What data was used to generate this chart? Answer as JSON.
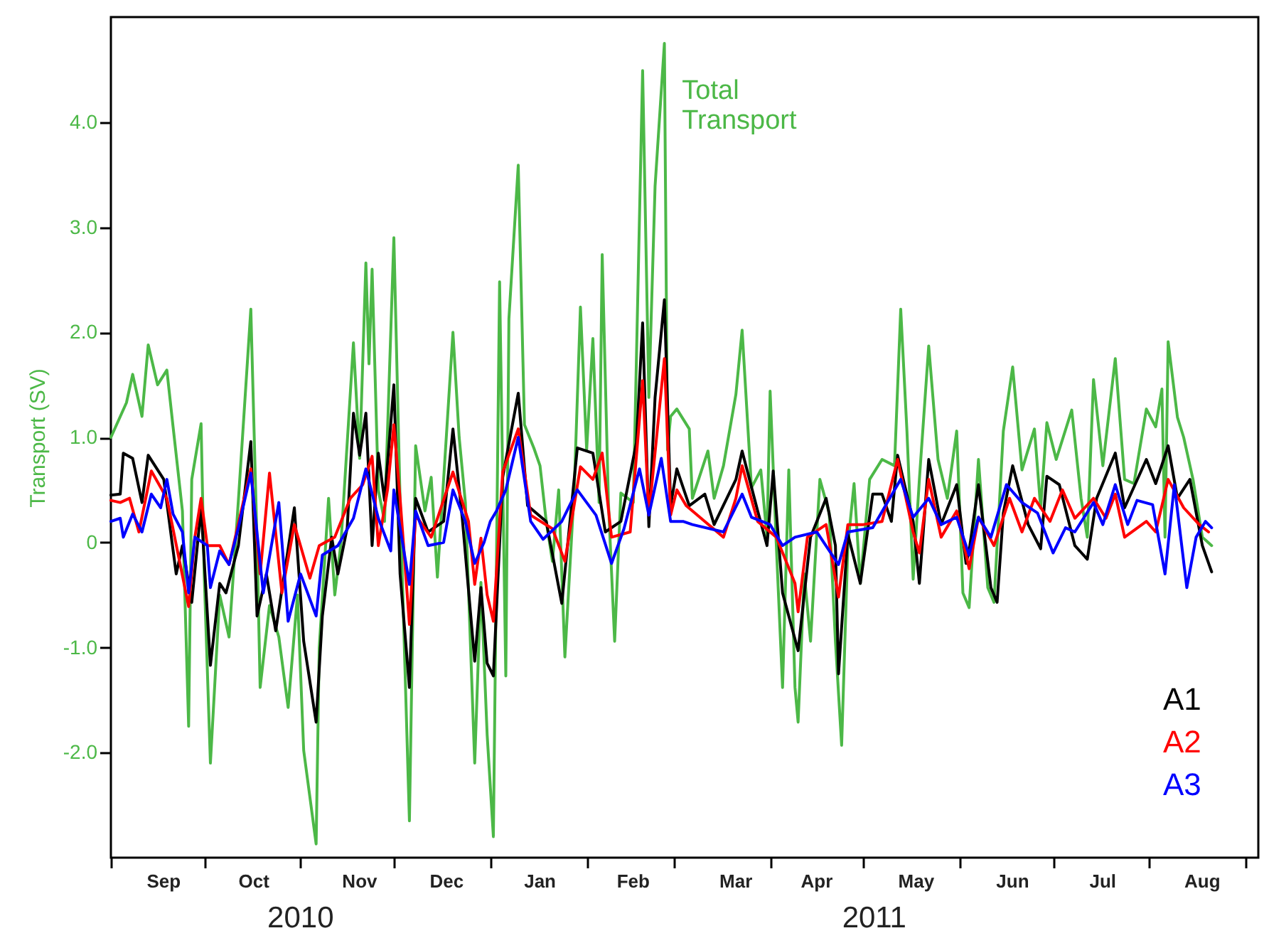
{
  "chart_data": {
    "type": "line",
    "ylabel": "Transport (SV)",
    "legend": "bottom right",
    "line_style": "solid",
    "xlim": [
      "2010-09-01",
      "2011-09-05"
    ],
    "xticks": [
      {
        "value": "2010-09-01",
        "label": null
      },
      {
        "value": "2010-09-18",
        "label": "Sep"
      },
      {
        "value": "2010-10-01",
        "label": null
      },
      {
        "value": "2010-10-17",
        "label": "Oct"
      },
      {
        "value": "2010-11-01",
        "label": null
      },
      {
        "value": "2010-11-20",
        "label": "Nov"
      },
      {
        "value": "2010-12-01",
        "label": null
      },
      {
        "value": "2010-12-18",
        "label": "Dec"
      },
      {
        "value": "2011-01-01",
        "label": null
      },
      {
        "value": "2011-01-17",
        "label": "Jan"
      },
      {
        "value": "2011-02-01",
        "label": null
      },
      {
        "value": "2011-02-16",
        "label": "Feb"
      },
      {
        "value": "2011-03-01",
        "label": null
      },
      {
        "value": "2011-03-21",
        "label": "Mar"
      },
      {
        "value": "2011-04-01",
        "label": null
      },
      {
        "value": "2011-04-16",
        "label": "Apr"
      },
      {
        "value": "2011-05-01",
        "label": null
      },
      {
        "value": "2011-05-18",
        "label": "May"
      },
      {
        "value": "2011-06-01",
        "label": null
      },
      {
        "value": "2011-06-18",
        "label": "Jun"
      },
      {
        "value": "2011-07-01",
        "label": null
      },
      {
        "value": "2011-07-17",
        "label": "Jul"
      },
      {
        "value": "2011-08-01",
        "label": null
      },
      {
        "value": "2011-08-18",
        "label": "Aug"
      },
      {
        "value": "2011-09-01",
        "label": null
      }
    ],
    "ylim": [
      -3,
      5
    ],
    "yticks": [
      {
        "value": -2,
        "label": "-2.0"
      },
      {
        "value": -1,
        "label": "-1.0"
      },
      {
        "value": 0,
        "label": "0"
      },
      {
        "value": 1,
        "label": "1.0"
      },
      {
        "value": 2,
        "label": "2.0"
      },
      {
        "value": 3,
        "label": "3.0"
      },
      {
        "value": 4,
        "label": "4.0"
      }
    ],
    "series": [
      {
        "color": "#4cb847",
        "x": [
          "2010-09-01",
          "2010-09-06",
          "2010-09-08",
          "2010-09-11",
          "2010-09-13",
          "2010-09-16",
          "2010-09-19",
          "2010-09-21",
          "2010-09-24",
          "2010-09-26",
          "2010-09-27",
          "2010-09-30",
          "2010-10-01",
          "2010-10-03",
          "2010-10-06",
          "2010-10-09",
          "2010-10-12",
          "2010-10-16",
          "2010-10-18",
          "2010-10-19",
          "2010-10-22",
          "2010-10-25",
          "2010-10-28",
          "2010-10-31",
          "2010-11-02",
          "2010-11-06",
          "2010-11-07",
          "2010-11-10",
          "2010-11-12",
          "2010-11-14",
          "2010-11-18",
          "2010-11-20",
          "2010-11-22",
          "2010-11-23",
          "2010-11-24",
          "2010-11-26",
          "2010-11-28",
          "2010-12-01",
          "2010-12-03",
          "2010-12-06",
          "2010-12-08",
          "2010-12-11",
          "2010-12-13",
          "2010-12-15",
          "2010-12-17",
          "2010-12-20",
          "2010-12-22",
          "2010-12-24",
          "2010-12-27",
          "2010-12-29",
          "2010-12-31",
          "2011-01-02",
          "2011-01-04",
          "2011-01-06",
          "2011-01-07",
          "2011-01-10",
          "2011-01-12",
          "2011-01-15",
          "2011-01-17",
          "2011-01-19",
          "2011-01-21",
          "2011-01-23",
          "2011-01-25",
          "2011-01-28",
          "2011-01-30",
          "2011-02-01",
          "2011-02-03",
          "2011-02-05",
          "2011-02-06",
          "2011-02-08",
          "2011-02-10",
          "2011-02-12",
          "2011-02-16",
          "2011-02-17",
          "2011-02-19",
          "2011-02-21",
          "2011-02-23",
          "2011-02-26",
          "2011-02-27",
          "2011-02-28",
          "2011-03-02",
          "2011-03-06",
          "2011-03-07",
          "2011-03-12",
          "2011-03-14",
          "2011-03-17",
          "2011-03-21",
          "2011-03-23",
          "2011-03-26",
          "2011-03-29",
          "2011-03-31",
          "2011-04-01",
          "2011-04-03",
          "2011-04-05",
          "2011-04-07",
          "2011-04-09",
          "2011-04-10",
          "2011-04-12",
          "2011-04-14",
          "2011-04-17",
          "2011-04-20",
          "2011-04-22",
          "2011-04-24",
          "2011-04-26",
          "2011-04-28",
          "2011-04-30",
          "2011-05-03",
          "2011-05-07",
          "2011-05-11",
          "2011-05-13",
          "2011-05-15",
          "2011-05-17",
          "2011-05-19",
          "2011-05-22",
          "2011-05-25",
          "2011-05-28",
          "2011-05-31",
          "2011-06-02",
          "2011-06-04",
          "2011-06-07",
          "2011-06-10",
          "2011-06-12",
          "2011-06-15",
          "2011-06-18",
          "2011-06-21",
          "2011-06-25",
          "2011-06-27",
          "2011-06-29",
          "2011-07-02",
          "2011-07-07",
          "2011-07-10",
          "2011-07-12",
          "2011-07-14",
          "2011-07-17",
          "2011-07-21",
          "2011-07-24",
          "2011-07-27",
          "2011-07-31",
          "2011-08-03",
          "2011-08-05",
          "2011-08-06",
          "2011-08-07",
          "2011-08-10",
          "2011-08-12",
          "2011-08-15",
          "2011-08-18",
          "2011-08-21"
        ],
        "values": [
          1.0,
          1.33,
          1.6,
          1.2,
          1.88,
          1.5,
          1.64,
          1.1,
          0.3,
          -1.75,
          0.6,
          1.13,
          -0.3,
          -2.1,
          -0.5,
          -0.9,
          0.4,
          2.22,
          0.0,
          -1.38,
          -0.6,
          -0.9,
          -1.57,
          -0.5,
          -1.98,
          -2.87,
          -1.0,
          0.42,
          -0.5,
          0.0,
          1.9,
          0.8,
          2.66,
          1.7,
          2.6,
          0.5,
          0.2,
          2.9,
          0.4,
          -2.65,
          0.92,
          0.3,
          0.62,
          -0.33,
          0.6,
          2.0,
          1.0,
          0.38,
          -2.1,
          -0.38,
          -1.83,
          -2.8,
          2.48,
          -1.27,
          2.13,
          3.59,
          1.12,
          0.9,
          0.73,
          0.2,
          -0.18,
          0.5,
          -1.09,
          0.5,
          2.24,
          0.88,
          1.94,
          0.38,
          2.74,
          0.38,
          -0.94,
          0.47,
          0.38,
          1.74,
          4.49,
          1.38,
          3.39,
          4.75,
          0.88,
          1.2,
          1.27,
          1.08,
          0.42,
          0.87,
          0.42,
          0.73,
          1.41,
          2.02,
          0.52,
          0.69,
          0.05,
          1.44,
          -0.03,
          -1.38,
          0.69,
          -1.38,
          -1.71,
          -0.3,
          -0.94,
          0.6,
          0.28,
          -0.94,
          -1.93,
          -0.03,
          0.56,
          -0.39,
          0.6,
          0.79,
          0.73,
          2.22,
          1.06,
          -0.35,
          0.6,
          1.87,
          0.79,
          0.42,
          1.06,
          -0.48,
          -0.62,
          0.79,
          -0.43,
          -0.57,
          1.06,
          1.67,
          0.69,
          1.08,
          0.33,
          1.14,
          0.79,
          1.26,
          0.42,
          0.05,
          1.55,
          0.73,
          1.75,
          0.6,
          0.56,
          1.27,
          1.1,
          1.46,
          0.05,
          1.91,
          1.19,
          1.0,
          0.6,
          0.05,
          -0.03
        ]
      },
      {
        "name": "A1",
        "color": "#000000",
        "x": [
          "2010-09-01",
          "2010-09-04",
          "2010-09-05",
          "2010-09-08",
          "2010-09-11",
          "2010-09-13",
          "2010-09-18",
          "2010-09-22",
          "2010-09-24",
          "2010-09-27",
          "2010-09-30",
          "2010-10-03",
          "2010-10-06",
          "2010-10-08",
          "2010-10-12",
          "2010-10-16",
          "2010-10-18",
          "2010-10-21",
          "2010-10-24",
          "2010-10-30",
          "2010-11-02",
          "2010-11-06",
          "2010-11-08",
          "2010-11-11",
          "2010-11-13",
          "2010-11-16",
          "2010-11-18",
          "2010-11-20",
          "2010-11-22",
          "2010-11-24",
          "2010-11-26",
          "2010-11-28",
          "2010-12-01",
          "2010-12-03",
          "2010-12-06",
          "2010-12-08",
          "2010-12-12",
          "2010-12-17",
          "2010-12-20",
          "2010-12-23",
          "2010-12-27",
          "2010-12-29",
          "2010-12-31",
          "2011-01-02",
          "2011-01-05",
          "2011-01-10",
          "2011-01-13",
          "2011-01-19",
          "2011-01-24",
          "2011-01-29",
          "2011-02-03",
          "2011-02-07",
          "2011-02-12",
          "2011-02-17",
          "2011-02-19",
          "2011-02-21",
          "2011-02-23",
          "2011-02-26",
          "2011-02-28",
          "2011-03-02",
          "2011-03-06",
          "2011-03-11",
          "2011-03-14",
          "2011-03-21",
          "2011-03-23",
          "2011-03-28",
          "2011-03-31",
          "2011-04-02",
          "2011-04-05",
          "2011-04-10",
          "2011-04-14",
          "2011-04-19",
          "2011-04-22",
          "2011-04-23",
          "2011-04-26",
          "2011-04-30",
          "2011-05-04",
          "2011-05-07",
          "2011-05-10",
          "2011-05-12",
          "2011-05-17",
          "2011-05-19",
          "2011-05-22",
          "2011-05-26",
          "2011-05-31",
          "2011-06-03",
          "2011-06-04",
          "2011-06-07",
          "2011-06-11",
          "2011-06-13",
          "2011-06-15",
          "2011-06-18",
          "2011-06-23",
          "2011-06-27",
          "2011-06-29",
          "2011-07-03",
          "2011-07-08",
          "2011-07-12",
          "2011-07-15",
          "2011-07-21",
          "2011-07-24",
          "2011-07-31",
          "2011-08-03",
          "2011-08-07",
          "2011-08-10",
          "2011-08-14",
          "2011-08-18",
          "2011-08-21"
        ],
        "values": [
          0.45,
          0.46,
          0.85,
          0.8,
          0.38,
          0.83,
          0.6,
          -0.3,
          -0.03,
          -0.57,
          0.33,
          -1.17,
          -0.39,
          -0.48,
          -0.03,
          0.96,
          -0.7,
          -0.3,
          -0.84,
          0.33,
          -0.94,
          -1.71,
          -0.7,
          0.05,
          -0.3,
          0.14,
          1.23,
          0.83,
          1.23,
          -0.03,
          0.85,
          0.4,
          1.5,
          -0.3,
          -1.38,
          0.42,
          0.1,
          0.2,
          1.08,
          0.23,
          -1.13,
          -0.43,
          -1.15,
          -1.27,
          0.62,
          1.42,
          0.35,
          0.2,
          -0.58,
          0.9,
          0.85,
          0.1,
          0.2,
          0.95,
          2.09,
          0.15,
          1.38,
          2.31,
          0.35,
          0.7,
          0.35,
          0.46,
          0.17,
          0.6,
          0.87,
          0.3,
          -0.03,
          0.68,
          -0.48,
          -1.03,
          0.05,
          0.42,
          -0.03,
          -1.25,
          0.08,
          -0.39,
          0.46,
          0.46,
          0.2,
          0.83,
          0.2,
          -0.39,
          0.79,
          0.17,
          0.55,
          -0.2,
          -0.08,
          0.55,
          -0.43,
          -0.57,
          0.28,
          0.73,
          0.17,
          -0.06,
          0.63,
          0.55,
          -0.03,
          -0.16,
          0.42,
          0.85,
          0.33,
          0.79,
          0.56,
          0.92,
          0.42,
          0.6,
          -0.03,
          -0.28
        ]
      },
      {
        "name": "A2",
        "color": "#ff0000",
        "x": [
          "2010-09-01",
          "2010-09-04",
          "2010-09-07",
          "2010-09-10",
          "2010-09-14",
          "2010-09-19",
          "2010-09-26",
          "2010-09-28",
          "2010-09-30",
          "2010-10-02",
          "2010-10-06",
          "2010-10-09",
          "2010-10-11",
          "2010-10-16",
          "2010-10-19",
          "2010-10-22",
          "2010-10-26",
          "2010-10-30",
          "2010-11-04",
          "2010-11-07",
          "2010-11-12",
          "2010-11-17",
          "2010-11-21",
          "2010-11-24",
          "2010-11-26",
          "2010-11-29",
          "2010-12-01",
          "2010-12-03",
          "2010-12-06",
          "2010-12-08",
          "2010-12-13",
          "2010-12-20",
          "2010-12-25",
          "2010-12-27",
          "2010-12-29",
          "2010-12-31",
          "2011-01-02",
          "2011-01-05",
          "2011-01-10",
          "2011-01-14",
          "2011-01-21",
          "2011-01-25",
          "2011-01-30",
          "2011-02-03",
          "2011-02-06",
          "2011-02-09",
          "2011-02-15",
          "2011-02-19",
          "2011-02-21",
          "2011-02-26",
          "2011-02-28",
          "2011-03-02",
          "2011-03-05",
          "2011-03-11",
          "2011-03-17",
          "2011-03-21",
          "2011-03-23",
          "2011-03-28",
          "2011-04-03",
          "2011-04-09",
          "2011-04-10",
          "2011-04-13",
          "2011-04-19",
          "2011-04-23",
          "2011-04-26",
          "2011-05-01",
          "2011-05-07",
          "2011-05-12",
          "2011-05-17",
          "2011-05-19",
          "2011-05-22",
          "2011-05-26",
          "2011-05-31",
          "2011-06-04",
          "2011-06-07",
          "2011-06-12",
          "2011-06-17",
          "2011-06-21",
          "2011-06-25",
          "2011-06-30",
          "2011-07-04",
          "2011-07-08",
          "2011-07-14",
          "2011-07-18",
          "2011-07-21",
          "2011-07-24",
          "2011-07-31",
          "2011-08-03",
          "2011-08-07",
          "2011-08-12",
          "2011-08-17",
          "2011-08-20"
        ],
        "values": [
          0.4,
          0.38,
          0.42,
          0.1,
          0.68,
          0.42,
          -0.61,
          0.05,
          0.42,
          -0.03,
          -0.03,
          -0.21,
          0.05,
          0.7,
          -0.3,
          0.66,
          -0.48,
          0.17,
          -0.34,
          -0.03,
          0.05,
          0.42,
          0.55,
          0.82,
          -0.03,
          0.51,
          1.12,
          0.42,
          -0.78,
          0.26,
          0.05,
          0.67,
          0.2,
          -0.4,
          0.04,
          -0.5,
          -0.75,
          0.67,
          1.08,
          0.26,
          0.13,
          -0.18,
          0.72,
          0.6,
          0.85,
          0.05,
          0.1,
          1.54,
          0.26,
          1.75,
          0.26,
          0.5,
          0.35,
          0.2,
          0.05,
          0.42,
          0.73,
          0.2,
          0.05,
          -0.39,
          -0.66,
          0.05,
          0.17,
          -0.52,
          0.17,
          0.17,
          0.2,
          0.79,
          0.1,
          -0.1,
          0.6,
          0.05,
          0.3,
          -0.25,
          0.24,
          -0.03,
          0.42,
          0.1,
          0.42,
          0.2,
          0.5,
          0.23,
          0.42,
          0.23,
          0.46,
          0.05,
          0.2,
          0.1,
          0.6,
          0.33,
          0.17,
          0.1
        ]
      },
      {
        "name": "A3",
        "color": "#0000ff",
        "x": [
          "2010-09-01",
          "2010-09-04",
          "2010-09-05",
          "2010-09-08",
          "2010-09-11",
          "2010-09-14",
          "2010-09-17",
          "2010-09-19",
          "2010-09-21",
          "2010-09-24",
          "2010-09-26",
          "2010-09-28",
          "2010-10-02",
          "2010-10-03",
          "2010-10-06",
          "2010-10-09",
          "2010-10-12",
          "2010-10-16",
          "2010-10-20",
          "2010-10-25",
          "2010-10-28",
          "2010-11-01",
          "2010-11-06",
          "2010-11-08",
          "2010-11-13",
          "2010-11-18",
          "2010-11-22",
          "2010-11-26",
          "2010-11-30",
          "2010-12-01",
          "2010-12-06",
          "2010-12-08",
          "2010-12-12",
          "2010-12-17",
          "2010-12-20",
          "2010-12-24",
          "2010-12-27",
          "2010-12-30",
          "2011-01-01",
          "2011-01-03",
          "2011-01-06",
          "2011-01-10",
          "2011-01-14",
          "2011-01-18",
          "2011-01-24",
          "2011-01-29",
          "2011-02-04",
          "2011-02-09",
          "2011-02-13",
          "2011-02-18",
          "2011-02-21",
          "2011-02-25",
          "2011-02-28",
          "2011-03-04",
          "2011-03-07",
          "2011-03-17",
          "2011-03-23",
          "2011-03-26",
          "2011-04-01",
          "2011-04-05",
          "2011-04-09",
          "2011-04-16",
          "2011-04-23",
          "2011-04-26",
          "2011-05-04",
          "2011-05-13",
          "2011-05-17",
          "2011-05-22",
          "2011-05-26",
          "2011-05-31",
          "2011-06-04",
          "2011-06-07",
          "2011-06-11",
          "2011-06-16",
          "2011-06-21",
          "2011-06-26",
          "2011-07-01",
          "2011-07-05",
          "2011-07-08",
          "2011-07-14",
          "2011-07-17",
          "2011-07-21",
          "2011-07-25",
          "2011-07-28",
          "2011-08-02",
          "2011-08-06",
          "2011-08-09",
          "2011-08-13",
          "2011-08-16",
          "2011-08-19",
          "2011-08-21"
        ],
        "values": [
          0.2,
          0.23,
          0.05,
          0.27,
          0.1,
          0.46,
          0.33,
          0.6,
          0.27,
          0.1,
          -0.48,
          0.05,
          -0.03,
          -0.43,
          -0.08,
          -0.21,
          0.14,
          0.66,
          -0.48,
          0.38,
          -0.75,
          -0.3,
          -0.7,
          -0.12,
          -0.03,
          0.23,
          0.7,
          0.23,
          -0.08,
          0.5,
          -0.4,
          0.3,
          -0.03,
          0.0,
          0.5,
          0.2,
          -0.2,
          0.0,
          0.2,
          0.3,
          0.5,
          1.0,
          0.2,
          0.03,
          0.2,
          0.5,
          0.26,
          -0.2,
          0.13,
          0.7,
          0.26,
          0.8,
          0.2,
          0.2,
          0.17,
          0.1,
          0.46,
          0.24,
          0.17,
          -0.03,
          0.05,
          0.1,
          -0.21,
          0.1,
          0.14,
          0.6,
          0.24,
          0.42,
          0.17,
          0.24,
          -0.12,
          0.24,
          0.05,
          0.55,
          0.38,
          0.28,
          -0.1,
          0.14,
          0.1,
          0.38,
          0.17,
          0.55,
          0.17,
          0.4,
          0.36,
          -0.3,
          0.55,
          -0.43,
          0.05,
          0.2,
          0.14
        ]
      }
    ],
    "annotations": [
      {
        "text": "Total Transport",
        "x": "2011-02-28",
        "y": 4.3
      },
      "2010",
      "2011"
    ]
  }
}
